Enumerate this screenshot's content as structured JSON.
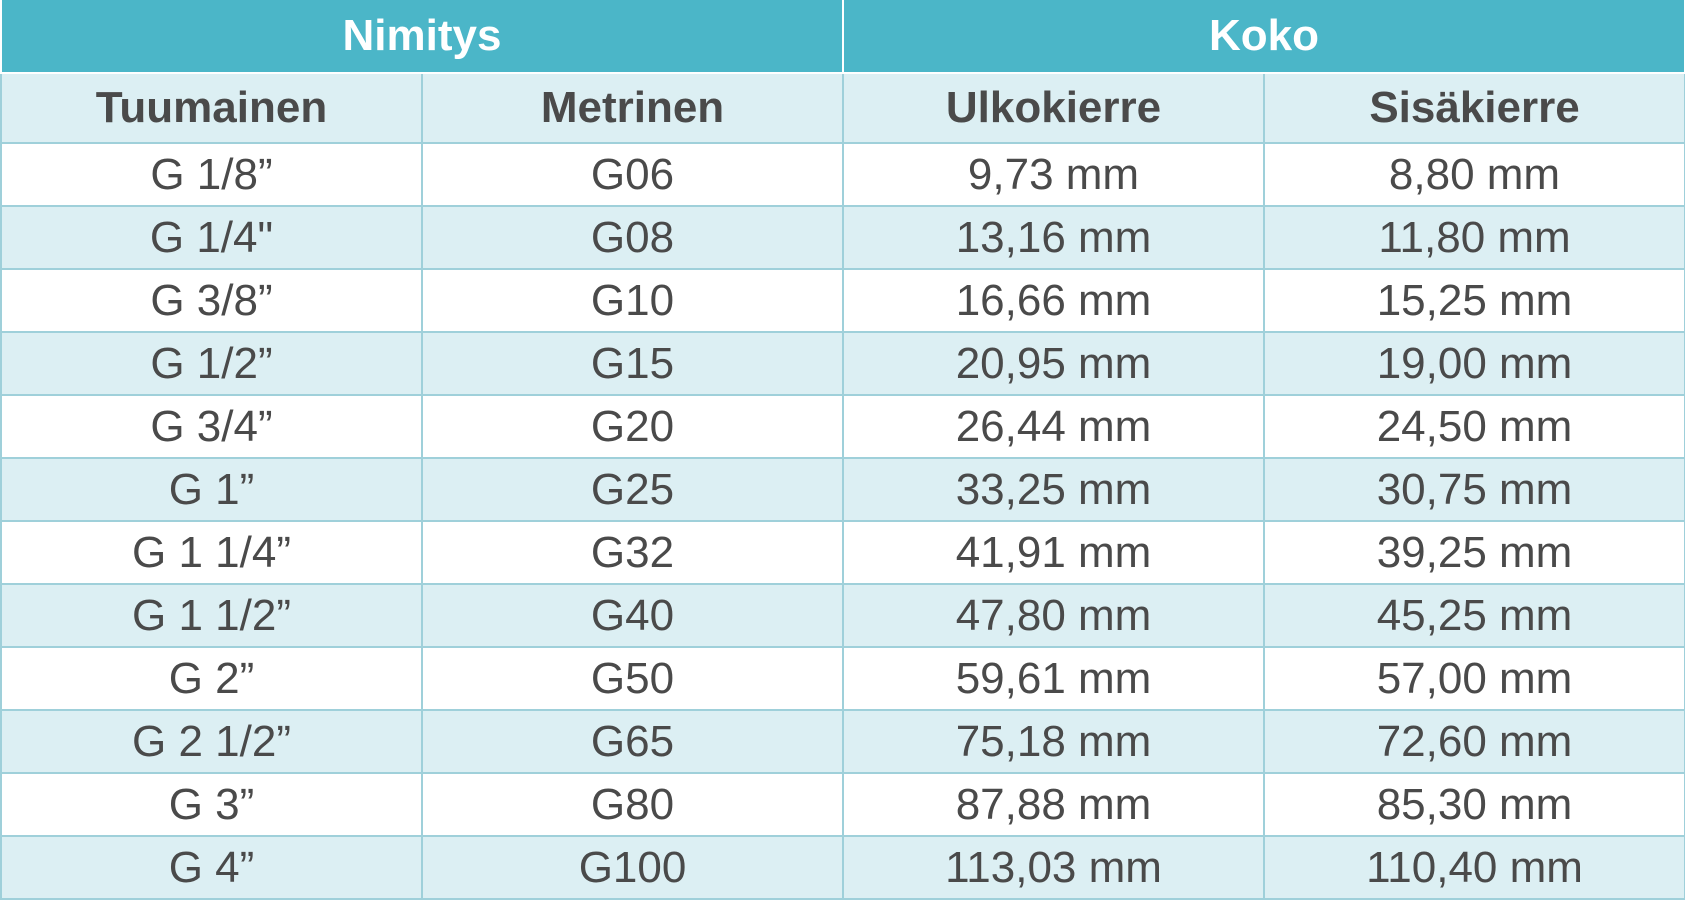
{
  "colors": {
    "group_header_bg": "#4bb6c8",
    "subheader_bg": "#dceff3",
    "row_alt_bg": "#dceff3",
    "row_bg": "#ffffff",
    "border": "#9fd0da",
    "text": "#4a4a4a"
  },
  "groups": [
    "Nimitys",
    "Koko"
  ],
  "headers": [
    "Tuumainen",
    "Metrinen",
    "Ulkokierre",
    "Sisäkierre"
  ],
  "rows": [
    [
      "G 1/8”",
      "G06",
      "9,73 mm",
      "8,80 mm"
    ],
    [
      "G 1/4\"",
      "G08",
      "13,16 mm",
      "11,80 mm"
    ],
    [
      "G 3/8”",
      "G10",
      "16,66 mm",
      "15,25 mm"
    ],
    [
      "G 1/2”",
      "G15",
      "20,95 mm",
      "19,00 mm"
    ],
    [
      "G 3/4”",
      "G20",
      "26,44 mm",
      "24,50 mm"
    ],
    [
      "G 1”",
      "G25",
      "33,25 mm",
      "30,75 mm"
    ],
    [
      "G 1 1/4”",
      "G32",
      "41,91 mm",
      "39,25 mm"
    ],
    [
      "G 1 1/2”",
      "G40",
      "47,80 mm",
      "45,25 mm"
    ],
    [
      "G 2”",
      "G50",
      "59,61 mm",
      "57,00 mm"
    ],
    [
      "G 2 1/2”",
      "G65",
      "75,18 mm",
      "72,60 mm"
    ],
    [
      "G 3”",
      "G80",
      "87,88 mm",
      "85,30 mm"
    ],
    [
      "G 4”",
      "G100",
      "113,03 mm",
      "110,40 mm"
    ]
  ]
}
